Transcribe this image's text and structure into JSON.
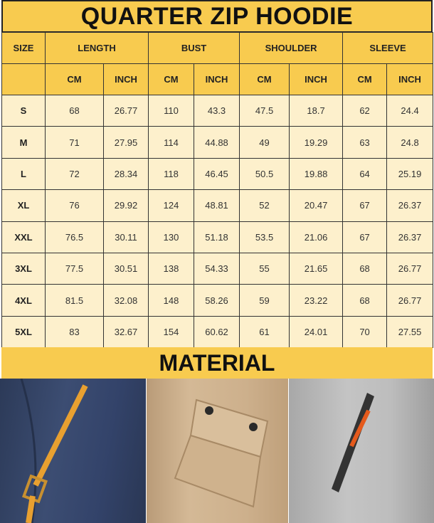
{
  "title": "QUARTER ZIP HOODIE",
  "headers": {
    "size": "SIZE",
    "groups": [
      "LENGTH",
      "BUST",
      "SHOULDER",
      "SLEEVE"
    ],
    "units": [
      "CM",
      "INCH",
      "CM",
      "INCH",
      "CM",
      "INCH",
      "CM",
      "INCH"
    ]
  },
  "rows": [
    [
      "S",
      "68",
      "26.77",
      "110",
      "43.3",
      "47.5",
      "18.7",
      "62",
      "24.4"
    ],
    [
      "M",
      "71",
      "27.95",
      "114",
      "44.88",
      "49",
      "19.29",
      "63",
      "24.8"
    ],
    [
      "L",
      "72",
      "28.34",
      "118",
      "46.45",
      "50.5",
      "19.88",
      "64",
      "25.19"
    ],
    [
      "XL",
      "76",
      "29.92",
      "124",
      "48.81",
      "52",
      "20.47",
      "67",
      "26.37"
    ],
    [
      "XXL",
      "76.5",
      "30.11",
      "130",
      "51.18",
      "53.5",
      "21.06",
      "67",
      "26.37"
    ],
    [
      "3XL",
      "77.5",
      "30.51",
      "138",
      "54.33",
      "55",
      "21.65",
      "68",
      "26.77"
    ],
    [
      "4XL",
      "81.5",
      "32.08",
      "148",
      "58.26",
      "59",
      "23.22",
      "68",
      "26.77"
    ],
    [
      "5XL",
      "83",
      "32.67",
      "154",
      "60.62",
      "61",
      "24.01",
      "70",
      "27.55"
    ]
  ],
  "material_title": "MATERIAL",
  "colors": {
    "header": "#f8cb4f",
    "cell": "#fdf0cc",
    "navy": "#33436a",
    "khaki": "#cdb08c",
    "gray": "#bdbdbd",
    "accent": "#e8a030"
  }
}
